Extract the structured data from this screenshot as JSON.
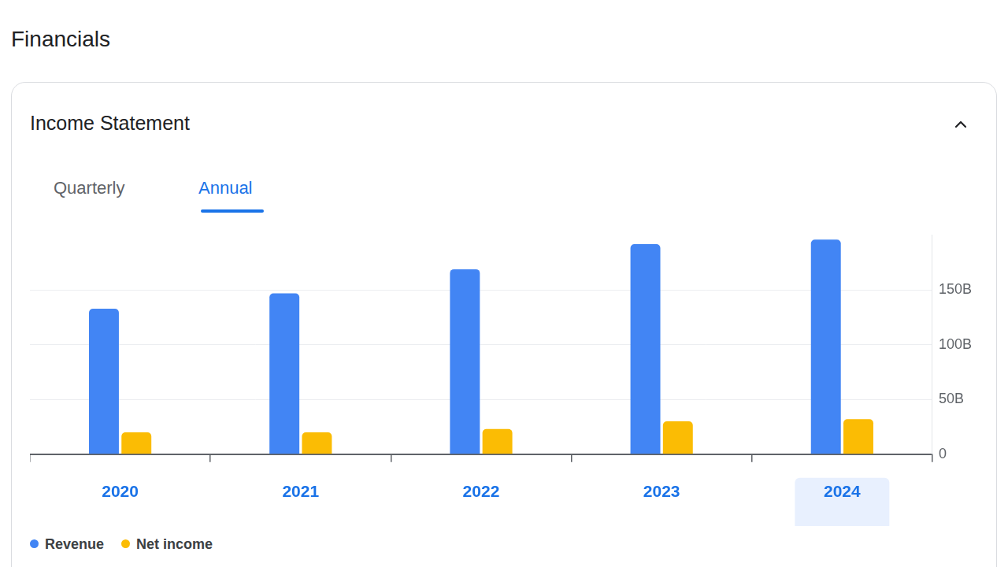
{
  "header": {
    "title": "Financials",
    "card_title": "Income Statement",
    "tabs": [
      "Quarterly",
      "Annual"
    ]
  },
  "chart_data": {
    "type": "bar",
    "categories": [
      "2020",
      "2021",
      "2022",
      "2023",
      "2024"
    ],
    "series": [
      {
        "name": "Revenue",
        "color": "#4285f4",
        "values": [
          133,
          147,
          169,
          192,
          196
        ]
      },
      {
        "name": "Net income",
        "color": "#fbbc04",
        "values": [
          20,
          20,
          23,
          30,
          32
        ]
      }
    ],
    "ylim": [
      0,
      200
    ],
    "yticks": [
      0,
      {
        "value": 50,
        "label": "50B"
      },
      {
        "value": 100,
        "label": "100B"
      },
      {
        "value": 150,
        "label": "150B"
      }
    ],
    "grid": true,
    "legend": "bottom"
  }
}
